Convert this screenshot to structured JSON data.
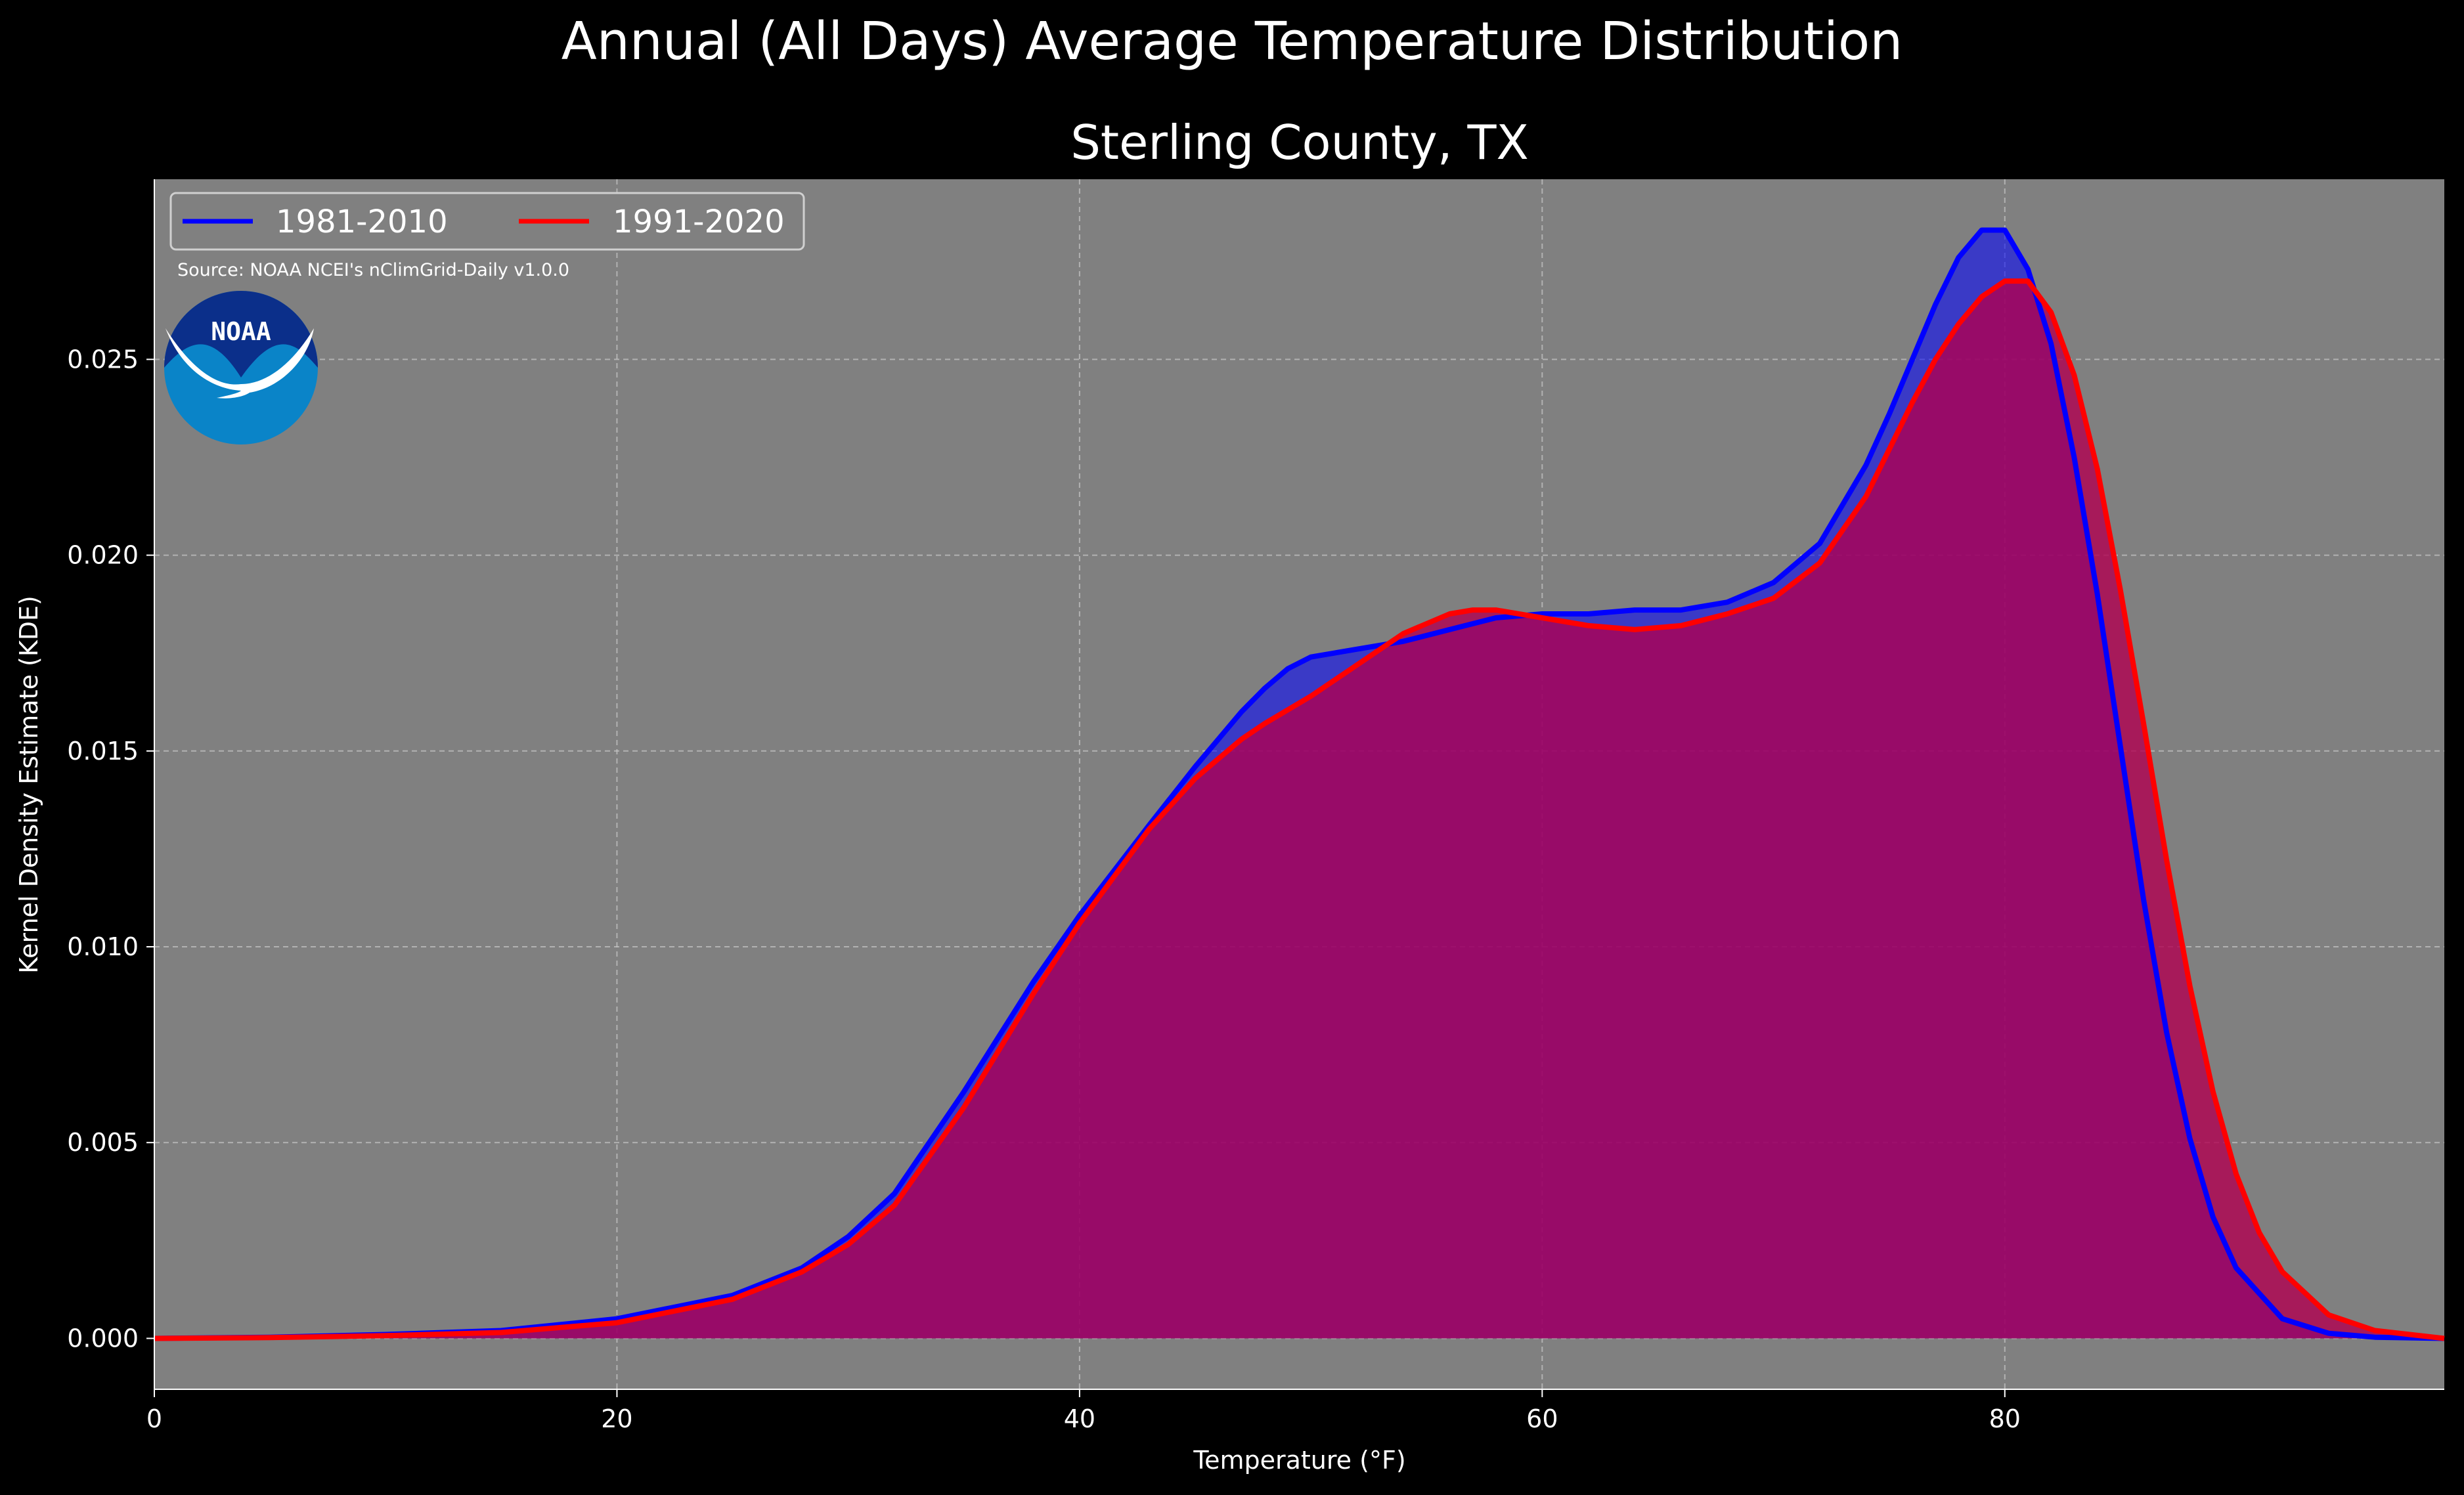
{
  "title": "Annual (All Days) Average Temperature Distribution",
  "subtitle": "Sterling County, TX",
  "source": "Source: NOAA NCEI's nClimGrid-Daily v1.0.0",
  "logo_text": "NOAA",
  "colors": {
    "background": "#000000",
    "plot_background": "#808080",
    "series_1981": "#0000ff",
    "series_1991": "#ff0000",
    "fill_1981": "#0000ff",
    "fill_1991": "#b00050"
  },
  "chart_data": {
    "type": "area",
    "title": "Sterling County, TX",
    "xlabel": "Temperature (°F)",
    "ylabel": "Kernel Density Estimate (KDE)",
    "xlim": [
      0,
      99
    ],
    "ylim": [
      -0.0013,
      0.0296
    ],
    "x_ticks": [
      0,
      20,
      40,
      60,
      80
    ],
    "y_ticks": [
      0.0,
      0.005,
      0.01,
      0.015,
      0.02,
      0.025
    ],
    "y_tick_labels": [
      "0.000",
      "0.005",
      "0.010",
      "0.015",
      "0.020",
      "0.025"
    ],
    "grid": true,
    "legend_position": "top-left",
    "series": [
      {
        "name": "1981-2010",
        "color": "#0000ff",
        "x": [
          0,
          5,
          10,
          15,
          20,
          25,
          28,
          30,
          32,
          35,
          38,
          40,
          43,
          45,
          47,
          48,
          49,
          50,
          52,
          54,
          56,
          58,
          60,
          62,
          64,
          66,
          68,
          70,
          72,
          74,
          75,
          76,
          77,
          78,
          79,
          80,
          81,
          82,
          83,
          84,
          85,
          86,
          87,
          88,
          89,
          90,
          92,
          94,
          96,
          99
        ],
        "y": [
          0.0,
          3e-05,
          0.0001,
          0.0002,
          0.0005,
          0.0011,
          0.0018,
          0.0026,
          0.0037,
          0.0063,
          0.0091,
          0.0108,
          0.0131,
          0.0146,
          0.016,
          0.0166,
          0.0171,
          0.0174,
          0.0176,
          0.0178,
          0.0181,
          0.0184,
          0.0185,
          0.0185,
          0.0186,
          0.0186,
          0.0188,
          0.0193,
          0.0203,
          0.0223,
          0.0236,
          0.025,
          0.0264,
          0.0276,
          0.0283,
          0.0283,
          0.0273,
          0.0254,
          0.0225,
          0.019,
          0.0151,
          0.0112,
          0.0078,
          0.0051,
          0.0031,
          0.0018,
          0.0005,
          0.00013,
          3e-05,
          0.0
        ]
      },
      {
        "name": "1991-2020",
        "color": "#ff0000",
        "x": [
          0,
          5,
          10,
          15,
          20,
          25,
          28,
          30,
          32,
          35,
          38,
          40,
          43,
          45,
          47,
          48,
          50,
          52,
          54,
          56,
          57,
          58,
          60,
          62,
          64,
          66,
          68,
          70,
          72,
          74,
          76,
          77,
          78,
          79,
          80,
          81,
          82,
          83,
          84,
          85,
          86,
          87,
          88,
          89,
          90,
          91,
          92,
          94,
          96,
          99
        ],
        "y": [
          0.0,
          2e-05,
          7e-05,
          0.00015,
          0.0004,
          0.001,
          0.0017,
          0.0024,
          0.0034,
          0.0059,
          0.0088,
          0.0106,
          0.013,
          0.0143,
          0.0153,
          0.0157,
          0.0164,
          0.0172,
          0.018,
          0.0185,
          0.0186,
          0.0186,
          0.0184,
          0.0182,
          0.0181,
          0.0182,
          0.0185,
          0.0189,
          0.0198,
          0.0215,
          0.0239,
          0.025,
          0.0259,
          0.0266,
          0.027,
          0.027,
          0.0262,
          0.0246,
          0.0222,
          0.0191,
          0.0157,
          0.0122,
          0.009,
          0.0063,
          0.0042,
          0.0027,
          0.0017,
          0.0006,
          0.0002,
          0.0
        ]
      }
    ]
  }
}
